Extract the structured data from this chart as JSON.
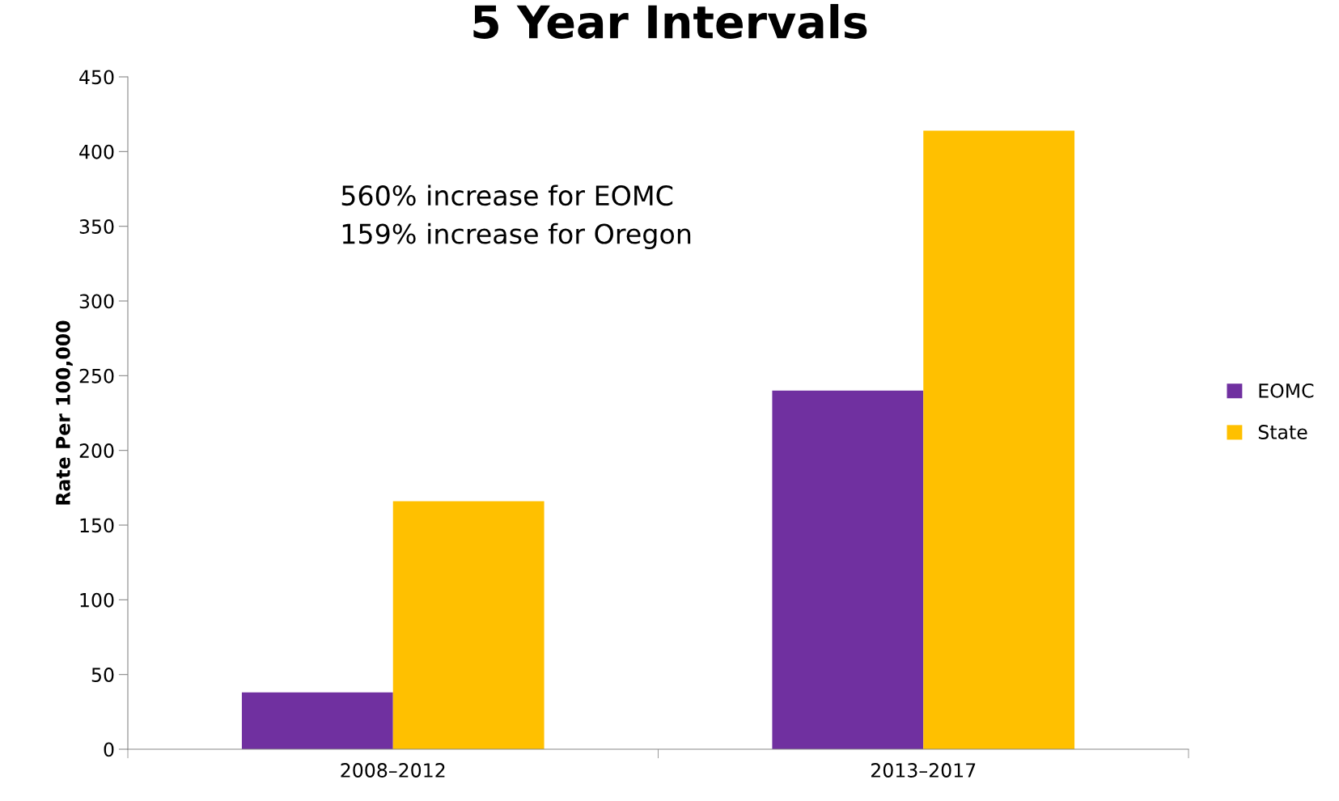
{
  "chart_data": {
    "type": "bar",
    "title": "5 Year Intervals",
    "ylabel": "Rate Per 100,000",
    "categories": [
      "2008–2012",
      "2013–2017"
    ],
    "series": [
      {
        "name": "EOMC",
        "color": "#7030a0",
        "values": [
          38,
          240
        ]
      },
      {
        "name": "State",
        "color": "#ffc000",
        "values": [
          166,
          414
        ]
      }
    ],
    "ylim": [
      0,
      450
    ],
    "yticks": [
      0,
      50,
      100,
      150,
      200,
      250,
      300,
      350,
      400,
      450
    ],
    "annotations": [
      "560% increase for EOMC",
      "159% increase for Oregon"
    ],
    "legend": "right",
    "grid": false
  }
}
